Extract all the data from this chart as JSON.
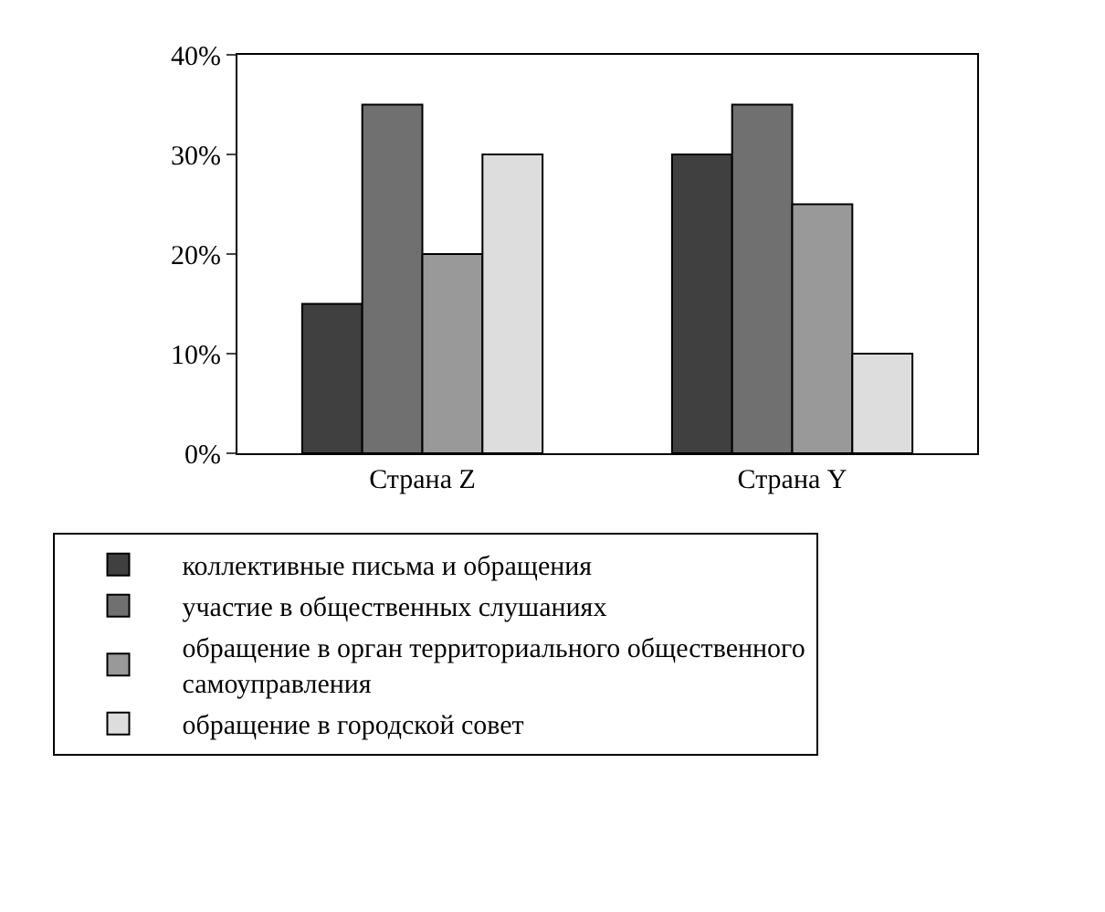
{
  "chart_data": {
    "type": "bar",
    "categories": [
      "Страна Z",
      "Страна Y"
    ],
    "series": [
      {
        "name": "коллективные письма и обращения",
        "color": "#404040",
        "values": [
          15,
          30
        ]
      },
      {
        "name": "участие в общественных слушаниях",
        "color": "#707070",
        "values": [
          35,
          35
        ]
      },
      {
        "name": "обращение в орган территориального общественного самоуправления",
        "color": "#999999",
        "values": [
          20,
          25
        ]
      },
      {
        "name": "обращение в городской совет",
        "color": "#dddddd",
        "values": [
          30,
          10
        ]
      }
    ],
    "ylim": [
      0,
      40
    ],
    "yticks": [
      {
        "value": 0,
        "label": "0%"
      },
      {
        "value": 10,
        "label": "10%"
      },
      {
        "value": 20,
        "label": "20%"
      },
      {
        "value": 30,
        "label": "30%"
      },
      {
        "value": 40,
        "label": "40%"
      }
    ],
    "legend": "bottom"
  }
}
